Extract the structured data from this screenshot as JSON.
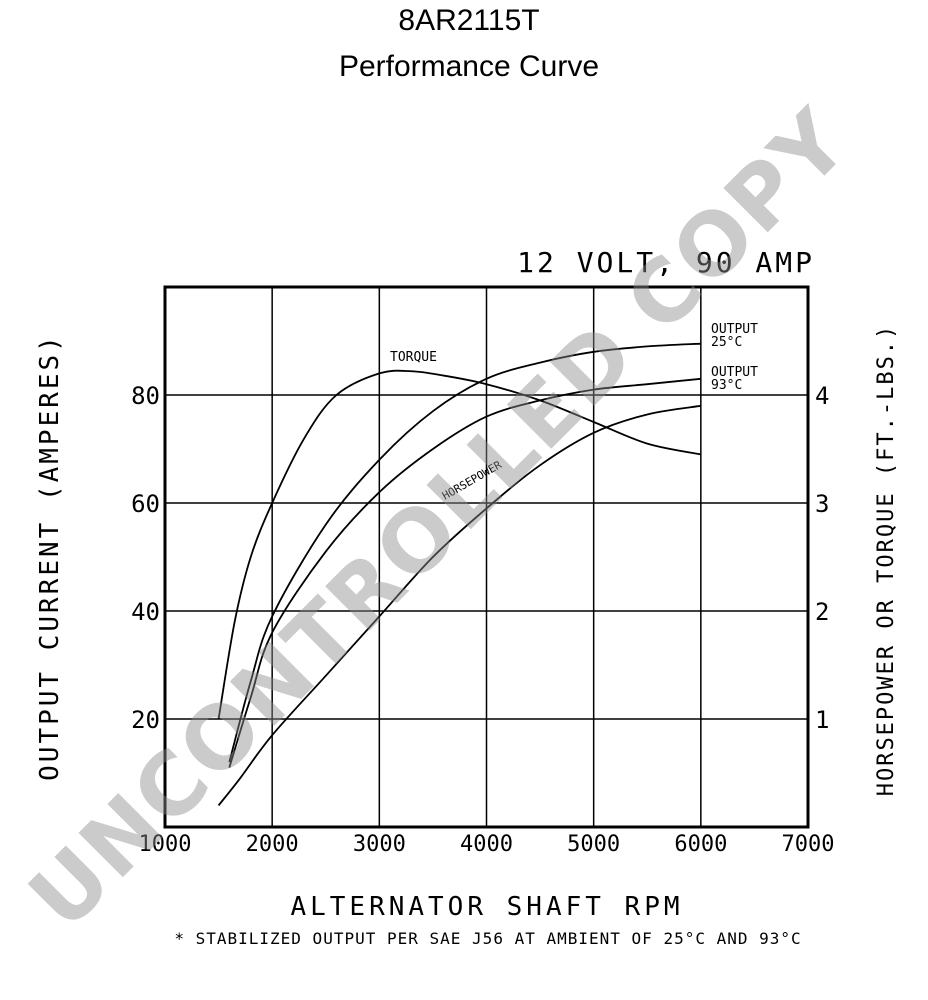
{
  "title_line1": "8AR2115T",
  "title_line2": "Performance Curve",
  "watermark": "UNCONTROLLED COPY",
  "chart_data": {
    "type": "line",
    "subtitle": "12 VOLT, 90 AMP",
    "xlabel": "ALTERNATOR SHAFT RPM",
    "ylabel_left": "OUTPUT CURRENT (AMPERES)",
    "ylabel_right": "HORSEPOWER OR TORQUE (FT.-LBS.)",
    "footnote": "* STABILIZED OUTPUT PER SAE J56 AT AMBIENT OF 25°C AND 93°C",
    "xlim": [
      1000,
      7000
    ],
    "ylim_left": [
      0,
      100
    ],
    "ylim_right": [
      0,
      5
    ],
    "x_ticks": [
      1000,
      2000,
      3000,
      4000,
      5000,
      6000,
      7000
    ],
    "x_tick_labels": [
      "1000",
      "2000",
      "3000",
      "4000",
      "5000",
      "6000",
      "7000"
    ],
    "y_left_ticks": [
      20,
      40,
      60,
      80
    ],
    "y_left_tick_labels": [
      "20",
      "40",
      "60",
      "80"
    ],
    "y_right_ticks": [
      1,
      2,
      3,
      4
    ],
    "y_right_tick_labels": [
      "1",
      "2",
      "3",
      "4"
    ],
    "grid": true,
    "series": [
      {
        "name": "OUTPUT 25°C",
        "label_lines": [
          "OUTPUT",
          "25°C"
        ],
        "axis": "left",
        "x": [
          1600,
          1800,
          2000,
          2500,
          3000,
          3500,
          4000,
          4500,
          5000,
          5500,
          6000
        ],
        "y": [
          12,
          27,
          39,
          56,
          68,
          77,
          83,
          86,
          88,
          89,
          89.5
        ]
      },
      {
        "name": "OUTPUT 93°C",
        "label_lines": [
          "OUTPUT",
          "93°C"
        ],
        "axis": "left",
        "x": [
          1600,
          1800,
          2000,
          2500,
          3000,
          3500,
          4000,
          4500,
          5000,
          5500,
          6000
        ],
        "y": [
          11,
          24,
          36,
          51,
          62,
          70,
          76,
          79,
          81,
          82,
          83
        ]
      },
      {
        "name": "TORQUE",
        "label_lines": [
          "TORQUE"
        ],
        "axis": "right",
        "x": [
          1500,
          1650,
          1800,
          2000,
          2300,
          2600,
          3000,
          3300,
          3600,
          4000,
          4500,
          5000,
          5500,
          6000
        ],
        "y": [
          1.0,
          1.9,
          2.5,
          3.0,
          3.6,
          4.0,
          4.2,
          4.22,
          4.18,
          4.1,
          3.95,
          3.75,
          3.55,
          3.45
        ]
      },
      {
        "name": "HORSEPOWER",
        "label_lines": [
          "HORSEPOWER"
        ],
        "axis": "right",
        "x": [
          1500,
          1700,
          2000,
          2500,
          3000,
          3500,
          4000,
          4500,
          5000,
          5500,
          6000
        ],
        "y": [
          0.2,
          0.45,
          0.85,
          1.4,
          1.95,
          2.5,
          2.95,
          3.35,
          3.65,
          3.82,
          3.9
        ]
      }
    ]
  }
}
